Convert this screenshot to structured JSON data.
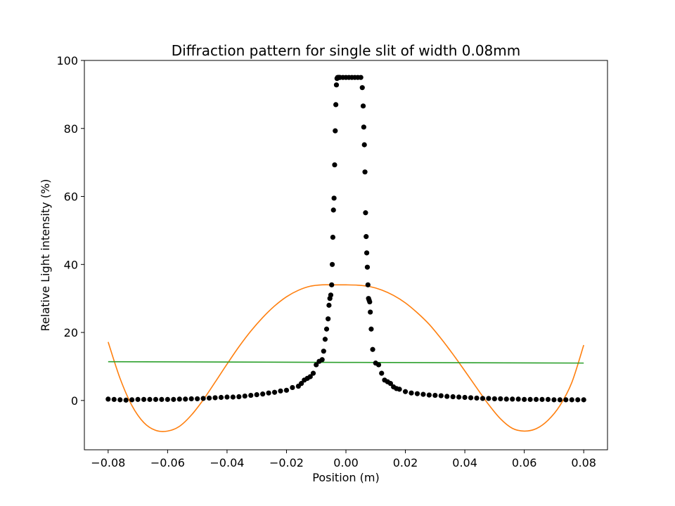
{
  "chart_data": {
    "type": "scatter",
    "title": "Diffraction pattern for single slit of width 0.08mm",
    "xlabel": "Position (m)",
    "ylabel": "Relative Light intensity (%)",
    "xlim": [
      -0.088,
      0.088
    ],
    "ylim": [
      -14.5,
      100
    ],
    "x_ticks": [
      -0.08,
      -0.06,
      -0.04,
      -0.02,
      0.0,
      0.02,
      0.04,
      0.06,
      0.08
    ],
    "x_tick_labels": [
      "−0.08",
      "−0.06",
      "−0.04",
      "−0.02",
      "0.00",
      "0.02",
      "0.04",
      "0.06",
      "0.08"
    ],
    "y_ticks": [
      0,
      20,
      40,
      60,
      80,
      100
    ],
    "y_tick_labels": [
      "0",
      "20",
      "40",
      "60",
      "80",
      "100"
    ],
    "grid": false,
    "legend": "none",
    "series": [
      {
        "kind": "scatter",
        "color": "#000000",
        "x": [
          -0.08,
          -0.078,
          -0.076,
          -0.074,
          -0.072,
          -0.07,
          -0.068,
          -0.066,
          -0.064,
          -0.062,
          -0.06,
          -0.058,
          -0.056,
          -0.054,
          -0.052,
          -0.05,
          -0.048,
          -0.046,
          -0.044,
          -0.042,
          -0.04,
          -0.038,
          -0.036,
          -0.034,
          -0.032,
          -0.03,
          -0.028,
          -0.026,
          -0.024,
          -0.022,
          -0.02,
          -0.018,
          -0.016,
          -0.015,
          -0.014,
          -0.013,
          -0.012,
          -0.011,
          -0.01,
          -0.009,
          -0.008,
          -0.0075,
          -0.007,
          -0.0065,
          -0.006,
          -0.0057,
          -0.0054,
          -0.0051,
          -0.0048,
          -0.0046,
          -0.0044,
          -0.0042,
          -0.004,
          -0.0038,
          -0.0036,
          -0.0034,
          -0.0032,
          -0.003,
          -0.0028,
          -0.0026,
          -0.0024,
          -0.0022,
          -0.002,
          -0.001,
          0.0,
          0.001,
          0.002,
          0.003,
          0.004,
          0.005,
          0.0055,
          0.0058,
          0.006,
          0.0062,
          0.0064,
          0.0066,
          0.0068,
          0.007,
          0.0072,
          0.0074,
          0.0076,
          0.0078,
          0.008,
          0.0082,
          0.0085,
          0.009,
          0.01,
          0.011,
          0.012,
          0.013,
          0.014,
          0.015,
          0.016,
          0.017,
          0.018,
          0.02,
          0.022,
          0.024,
          0.026,
          0.028,
          0.03,
          0.032,
          0.034,
          0.036,
          0.038,
          0.04,
          0.042,
          0.044,
          0.046,
          0.048,
          0.05,
          0.052,
          0.054,
          0.056,
          0.058,
          0.06,
          0.062,
          0.064,
          0.066,
          0.068,
          0.07,
          0.072,
          0.074,
          0.076,
          0.078,
          0.08
        ],
        "y": [
          0.4,
          0.3,
          0.2,
          0.1,
          0.2,
          0.3,
          0.3,
          0.3,
          0.3,
          0.3,
          0.3,
          0.3,
          0.4,
          0.4,
          0.5,
          0.5,
          0.6,
          0.7,
          0.8,
          0.9,
          1.0,
          1.0,
          1.1,
          1.3,
          1.5,
          1.7,
          1.9,
          2.2,
          2.4,
          2.8,
          3.0,
          3.8,
          4.2,
          5.0,
          6.0,
          6.5,
          7.0,
          8.0,
          10.5,
          11.5,
          12.0,
          14.5,
          18.0,
          21.0,
          24.0,
          28.0,
          30.0,
          31.0,
          34.0,
          40.0,
          48.0,
          56.0,
          59.5,
          69.3,
          79.3,
          87.0,
          92.8,
          94.7,
          95.0,
          95.0,
          95.0,
          95.0,
          95.0,
          95.0,
          95.0,
          95.0,
          95.0,
          95.0,
          95.0,
          95.0,
          92.0,
          86.6,
          80.4,
          75.2,
          67.2,
          55.2,
          48.2,
          43.4,
          39.2,
          34.0,
          30.0,
          29.5,
          29.0,
          26.0,
          21.0,
          15.0,
          11.0,
          10.5,
          8.0,
          6.0,
          5.5,
          5.0,
          4.0,
          3.5,
          3.3,
          2.6,
          2.2,
          2.0,
          1.8,
          1.6,
          1.5,
          1.4,
          1.2,
          1.1,
          1.0,
          0.9,
          0.8,
          0.7,
          0.6,
          0.6,
          0.5,
          0.5,
          0.4,
          0.4,
          0.4,
          0.3,
          0.3,
          0.3,
          0.3,
          0.3,
          0.2,
          0.2,
          0.2,
          0.2,
          0.2,
          0.2
        ]
      },
      {
        "kind": "line",
        "color": "#ff7f0e",
        "x": [
          -0.08,
          -0.076,
          -0.072,
          -0.068,
          -0.064,
          -0.06,
          -0.056,
          -0.052,
          -0.048,
          -0.044,
          -0.04,
          -0.036,
          -0.032,
          -0.028,
          -0.024,
          -0.02,
          -0.016,
          -0.012,
          -0.008,
          -0.004,
          0.0,
          0.004,
          0.008,
          0.012,
          0.016,
          0.02,
          0.024,
          0.028,
          0.032,
          0.036,
          0.04,
          0.044,
          0.048,
          0.052,
          0.056,
          0.06,
          0.064,
          0.068,
          0.072,
          0.076,
          0.08
        ],
        "y": [
          17.2,
          6.5,
          -1.5,
          -6.5,
          -8.8,
          -9.0,
          -7.6,
          -4.3,
          0.2,
          5.4,
          10.7,
          15.8,
          20.4,
          24.4,
          27.8,
          30.5,
          32.4,
          33.6,
          34.0,
          34.0,
          34.0,
          33.9,
          33.5,
          32.5,
          30.9,
          28.7,
          25.8,
          22.4,
          18.2,
          13.6,
          8.7,
          3.7,
          -1.2,
          -5.4,
          -8.2,
          -9.0,
          -8.3,
          -5.8,
          -1.5,
          5.3,
          16.3
        ]
      },
      {
        "kind": "line",
        "color": "#2ca02c",
        "x": [
          -0.08,
          0.08
        ],
        "y": [
          11.4,
          11.0
        ]
      }
    ]
  }
}
